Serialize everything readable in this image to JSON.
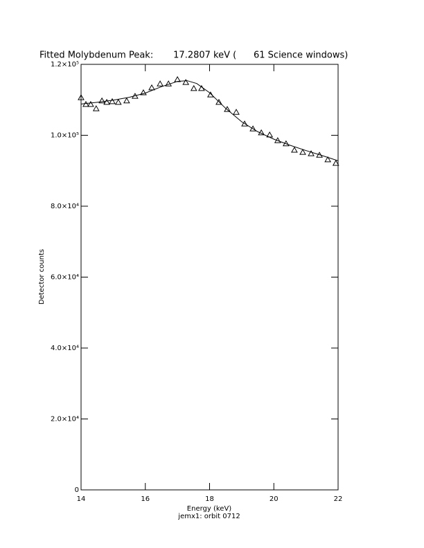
{
  "chart_data": {
    "type": "scatter",
    "title": "Fitted Molybdenum Peak:       17.2807 keV (      61 Science windows)",
    "x_label": "Energy (keV)",
    "subcaption": "jemx1: orbit 0712",
    "y_label": "Detector counts",
    "xlim": [
      14,
      22
    ],
    "xticks": [
      14,
      16,
      18,
      20,
      22
    ],
    "ylim": [
      0,
      120000
    ],
    "yticks": [
      0,
      {
        "value": 20000,
        "label": "2.0×10⁴"
      },
      {
        "value": 40000,
        "label": "4.0×10⁴"
      },
      {
        "value": 60000,
        "label": "6.0×10⁴"
      },
      {
        "value": 80000,
        "label": "8.0×10⁴"
      },
      {
        "value": 100000,
        "label": "1.0×10⁵"
      },
      {
        "value": 120000,
        "label": "1.2×10⁵"
      }
    ],
    "color": "#000000",
    "series": [
      {
        "mark": "triangle",
        "x": [
          14.0,
          14.15,
          14.3,
          14.47,
          14.65,
          14.8,
          14.97,
          15.16,
          15.42,
          15.68,
          15.94,
          16.2,
          16.46,
          16.72,
          17.0,
          17.26,
          17.51,
          17.75,
          18.03,
          18.29,
          18.55,
          18.83,
          19.09,
          19.35,
          19.61,
          19.87,
          20.12,
          20.38,
          20.64,
          20.9,
          21.16,
          21.42,
          21.68,
          21.93
        ],
        "values": [
          110600,
          108700,
          108700,
          107500,
          109700,
          109300,
          109500,
          109300,
          109700,
          111000,
          112000,
          113400,
          114500,
          114500,
          115700,
          114900,
          113200,
          113200,
          111400,
          109300,
          107300,
          106500,
          103200,
          101800,
          100700,
          100100,
          98500,
          97600,
          95800,
          95200,
          94800,
          94400,
          93100,
          92100
        ]
      },
      {
        "mark": "line",
        "x": [
          14,
          14.5,
          15,
          15.5,
          16,
          16.5,
          17,
          17.3,
          17.6,
          18,
          18.5,
          19,
          19.5,
          20,
          20.5,
          21,
          21.5,
          22
        ],
        "values": [
          108800,
          109300,
          109900,
          110700,
          111900,
          113700,
          115200,
          115400,
          114600,
          112000,
          107600,
          103800,
          101000,
          98900,
          97200,
          95700,
          94300,
          92800
        ]
      }
    ]
  }
}
